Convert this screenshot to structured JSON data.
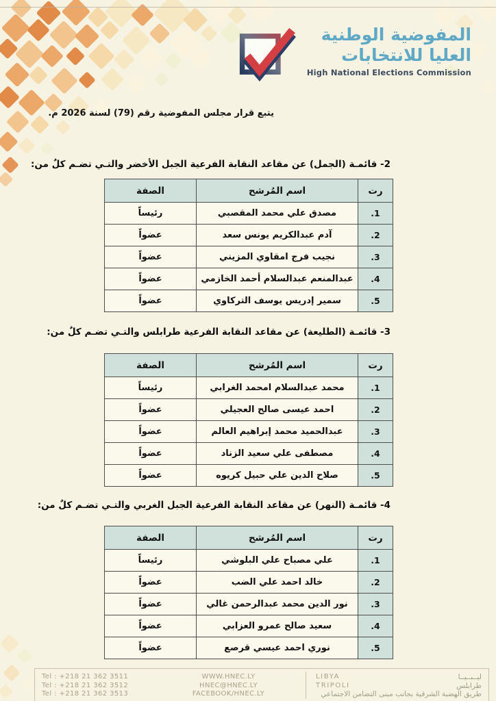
{
  "brand": {
    "title_ar_line1": "المفوضية الوطنية",
    "title_ar_line2": "العليا للانتخابات",
    "title_en": "High National Elections Commission"
  },
  "decree_note": "يتبع قرار مجلس المفوضية رقم (79) لسنة 2026 م.",
  "table_headers": {
    "rank": "رت",
    "name": "اسم المُرشح",
    "role": "الصفة"
  },
  "sections": [
    {
      "heading": "2- قائمـة (الجمل) عن مقاعد النقابة الفرعية الجبل الأخضر والتـي تضـم كلٌ من:",
      "rows": [
        {
          "rank": "1.",
          "name": "مصدق علي محمد المقصبي",
          "role": "رئيساً"
        },
        {
          "rank": "2.",
          "name": "آدم عبدالكريم يونس سعد",
          "role": "عضواً"
        },
        {
          "rank": "3.",
          "name": "نجيب فرج امقاوي المزيني",
          "role": "عضواً"
        },
        {
          "rank": "4.",
          "name": "عبدالمنعم عبدالسلام أحمد الخازمي",
          "role": "عضواً"
        },
        {
          "rank": "5.",
          "name": "سمير إدريس يوسف التركاوي",
          "role": "عضواً"
        }
      ]
    },
    {
      "heading": "3- قائمـة (الطليعة) عن مقاعد النقابة الفرعية طرابلس والتـي تضـم كلٌ من:",
      "rows": [
        {
          "rank": "1.",
          "name": "محمد عبدالسلام امحمد الغرابي",
          "role": "رئيساً"
        },
        {
          "rank": "2.",
          "name": "احمد عيسى صالح العجيلي",
          "role": "عضواً"
        },
        {
          "rank": "3.",
          "name": "عبدالحميد محمد إبراهيم العالم",
          "role": "عضواً"
        },
        {
          "rank": "4.",
          "name": "مصطفى علي سعيد الزناد",
          "role": "عضواً"
        },
        {
          "rank": "5.",
          "name": "صلاح الدين علي حبيل كريوه",
          "role": "عضواً"
        }
      ]
    },
    {
      "heading": "4- قائمـة (النهر) عن مقاعد النقابة الفرعية الجبل الغربي والتـي تضـم كلٌ من:",
      "rows": [
        {
          "rank": "1.",
          "name": "علي مصباح علي البلوشي",
          "role": "رئيساً"
        },
        {
          "rank": "2.",
          "name": "خالد احمد علي الضب",
          "role": "عضواً"
        },
        {
          "rank": "3.",
          "name": "نور الدين محمد عبدالرحمن غالي",
          "role": "عضواً"
        },
        {
          "rank": "4.",
          "name": "سعيد صالح عمرو العزابي",
          "role": "عضواً"
        },
        {
          "rank": "5.",
          "name": "نوري احمد عيسي قرصع",
          "role": "عضواً"
        }
      ]
    }
  ],
  "footer": {
    "phones": [
      "Tel : +218 21 362 3511",
      "Tel : +218 21 362 3512",
      "Tel : +218 21 362 3513"
    ],
    "web": [
      "WWW.HNEC.LY",
      "HNEC@HNEC.LY",
      "FACEBOOK/HNEC.LY"
    ],
    "rows": [
      {
        "en": "LIBYA",
        "ar": "ليــبــيــا"
      },
      {
        "en": "TRIPOLI",
        "ar": "طرابلس"
      }
    ],
    "address": "طريق الهضبة الشرقية بجانب مبنى التضامن الاجتماعي"
  },
  "colors": {
    "accent_blue": "#5fa9c6",
    "check_red": "#d43f44",
    "table_header_teal": "#cfe1da",
    "page_cream": "#f7f3e3"
  }
}
